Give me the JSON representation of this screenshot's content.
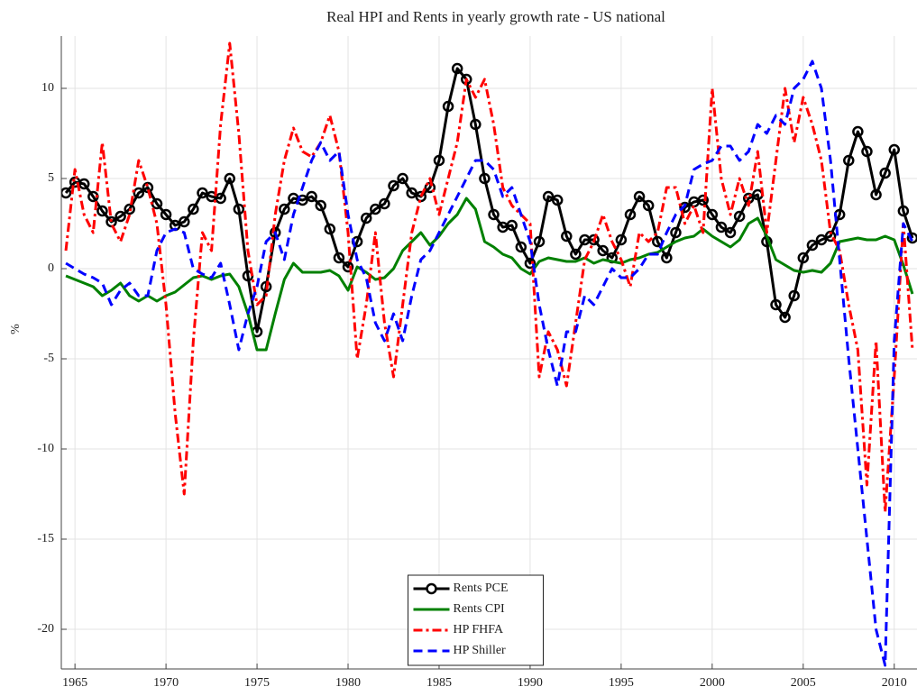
{
  "chart_data": {
    "type": "line",
    "title": "Real HPI and Rents in yearly growth rate - US national",
    "y_label": "%",
    "x": [
      1964.5,
      1965,
      1965.5,
      1966,
      1966.5,
      1967,
      1967.5,
      1968,
      1968.5,
      1969,
      1969.5,
      1970,
      1970.5,
      1971,
      1971.5,
      1972,
      1972.5,
      1973,
      1973.5,
      1974,
      1974.5,
      1975,
      1975.5,
      1976,
      1976.5,
      1977,
      1977.5,
      1978,
      1978.5,
      1979,
      1979.5,
      1980,
      1980.5,
      1981,
      1981.5,
      1982,
      1982.5,
      1983,
      1983.5,
      1984,
      1984.5,
      1985,
      1985.5,
      1986,
      1986.5,
      1987,
      1987.5,
      1988,
      1988.5,
      1989,
      1989.5,
      1990,
      1990.5,
      1991,
      1991.5,
      1992,
      1992.5,
      1993,
      1993.5,
      1994,
      1994.5,
      1995,
      1995.5,
      1996,
      1996.5,
      1997,
      1997.5,
      1998,
      1998.5,
      1999,
      1999.5,
      2000,
      2000.5,
      2001,
      2001.5,
      2002,
      2002.5,
      2003,
      2003.5,
      2004,
      2004.5,
      2005,
      2005.5,
      2006,
      2006.5,
      2007,
      2007.5,
      2008,
      2008.5,
      2009,
      2009.5,
      2010,
      2010.5,
      2011
    ],
    "series": [
      {
        "name": "Rents PCE",
        "color": "#000000",
        "line_style": "solid",
        "marker": "circle",
        "values": [
          4.2,
          4.8,
          4.7,
          4.0,
          3.2,
          2.6,
          2.9,
          3.3,
          4.2,
          4.5,
          3.6,
          3.0,
          2.4,
          2.6,
          3.3,
          4.2,
          4.0,
          3.9,
          5.0,
          3.3,
          -0.4,
          -3.5,
          -1.0,
          2.0,
          3.3,
          3.9,
          3.8,
          4.0,
          3.5,
          2.2,
          0.6,
          0.1,
          1.5,
          2.8,
          3.3,
          3.6,
          4.6,
          5.0,
          4.2,
          4.0,
          4.5,
          6.0,
          9.0,
          11.1,
          10.5,
          8.0,
          5.0,
          3.0,
          2.3,
          2.4,
          1.2,
          0.3,
          1.5,
          4.0,
          3.8,
          1.8,
          0.8,
          1.6,
          1.6,
          1.0,
          0.6,
          1.6,
          3.0,
          4.0,
          3.5,
          1.5,
          0.6,
          2.0,
          3.4,
          3.7,
          3.8,
          3.0,
          2.3,
          2.0,
          2.9,
          3.9,
          4.1,
          1.5,
          -2.0,
          -2.7,
          -1.5,
          0.6,
          1.3,
          1.6,
          1.8,
          3.0,
          6.0,
          7.6,
          6.5,
          4.1,
          5.3,
          6.6,
          3.2,
          1.7
        ]
      },
      {
        "name": "Rents CPI",
        "color": "#008000",
        "line_style": "solid",
        "values": [
          -0.4,
          -0.6,
          -0.8,
          -1.0,
          -1.5,
          -1.2,
          -0.8,
          -1.5,
          -1.8,
          -1.5,
          -1.8,
          -1.5,
          -1.3,
          -0.9,
          -0.5,
          -0.4,
          -0.6,
          -0.4,
          -0.3,
          -1.0,
          -2.5,
          -4.5,
          -4.5,
          -2.5,
          -0.6,
          0.3,
          -0.2,
          -0.2,
          -0.2,
          -0.1,
          -0.4,
          -1.2,
          0.1,
          -0.2,
          -0.6,
          -0.5,
          0.0,
          1.0,
          1.5,
          2.0,
          1.3,
          1.8,
          2.5,
          3.0,
          3.9,
          3.3,
          1.5,
          1.2,
          0.8,
          0.6,
          0.0,
          -0.3,
          0.4,
          0.6,
          0.5,
          0.4,
          0.4,
          0.6,
          0.3,
          0.5,
          0.4,
          0.3,
          0.5,
          0.6,
          0.8,
          0.9,
          1.2,
          1.5,
          1.7,
          1.8,
          2.2,
          1.8,
          1.5,
          1.2,
          1.6,
          2.5,
          2.8,
          1.8,
          0.5,
          0.2,
          -0.1,
          -0.2,
          -0.1,
          -0.2,
          0.3,
          1.5,
          1.6,
          1.7,
          1.6,
          1.6,
          1.8,
          1.6,
          0.2,
          -1.4
        ]
      },
      {
        "name": "HP FHFA",
        "color": "#ff0000",
        "line_style": "dashdot",
        "values": [
          1.0,
          5.5,
          3.0,
          2.0,
          7.0,
          2.5,
          1.5,
          3.0,
          6.0,
          4.5,
          2.5,
          -2.0,
          -8.0,
          -12.5,
          -4.0,
          2.0,
          1.0,
          8.0,
          12.5,
          7.5,
          1.0,
          -2.0,
          -1.5,
          3.0,
          6.0,
          7.8,
          6.5,
          6.2,
          7.0,
          8.5,
          6.5,
          2.0,
          -5.0,
          -2.0,
          2.0,
          -3.0,
          -6.0,
          -2.0,
          2.0,
          4.0,
          5.0,
          3.0,
          5.0,
          7.0,
          10.5,
          9.5,
          10.5,
          8.0,
          4.5,
          3.5,
          3.0,
          2.5,
          -6.0,
          -3.5,
          -4.5,
          -6.5,
          -3.0,
          0.5,
          1.5,
          3.0,
          1.5,
          0.5,
          -1.0,
          2.0,
          1.5,
          2.0,
          4.5,
          4.5,
          2.5,
          3.5,
          2.0,
          10.0,
          5.0,
          3.0,
          5.0,
          3.5,
          6.5,
          2.0,
          6.0,
          10.0,
          7.0,
          9.5,
          8.0,
          6.0,
          2.0,
          1.0,
          -2.0,
          -4.5,
          -12.0,
          -4.0,
          -13.5,
          -6.0,
          2.5,
          -4.5
        ]
      },
      {
        "name": "HP Shiller",
        "color": "#0000ff",
        "line_style": "dashed",
        "values": [
          0.3,
          0.0,
          -0.3,
          -0.5,
          -0.8,
          -2.0,
          -1.2,
          -0.8,
          -1.5,
          -1.5,
          1.0,
          2.0,
          2.2,
          2.0,
          0.0,
          -0.3,
          -0.5,
          0.3,
          -2.0,
          -4.5,
          -2.5,
          -1.0,
          1.5,
          2.0,
          0.5,
          3.0,
          4.5,
          6.0,
          7.0,
          6.0,
          6.5,
          3.0,
          0.5,
          -0.5,
          -3.0,
          -4.0,
          -2.5,
          -4.0,
          -1.5,
          0.5,
          1.0,
          2.0,
          3.0,
          4.0,
          5.0,
          6.0,
          6.0,
          5.5,
          4.0,
          4.5,
          3.0,
          1.5,
          -2.0,
          -4.5,
          -6.5,
          -3.5,
          -3.5,
          -1.5,
          -2.0,
          -1.0,
          0.0,
          -0.5,
          -0.5,
          0.0,
          0.8,
          0.8,
          2.0,
          3.0,
          3.5,
          5.5,
          5.8,
          6.0,
          6.8,
          6.8,
          6.0,
          6.5,
          8.0,
          7.5,
          8.5,
          8.0,
          10.0,
          10.5,
          11.5,
          10.0,
          6.0,
          0.5,
          -5.0,
          -10.0,
          -15.0,
          -20.0,
          -22.0,
          -4.0,
          2.5,
          1.5
        ]
      }
    ],
    "xlim": [
      1964.25,
      2011.25
    ],
    "xticks": [
      1965,
      1970,
      1975,
      1980,
      1985,
      1990,
      1995,
      2000,
      2005,
      2010
    ],
    "ylim": [
      -22.2,
      12.9
    ],
    "yticks": [
      -20,
      -15,
      -10,
      -5,
      0,
      5,
      10
    ],
    "grid": true,
    "legend": "lower center"
  }
}
